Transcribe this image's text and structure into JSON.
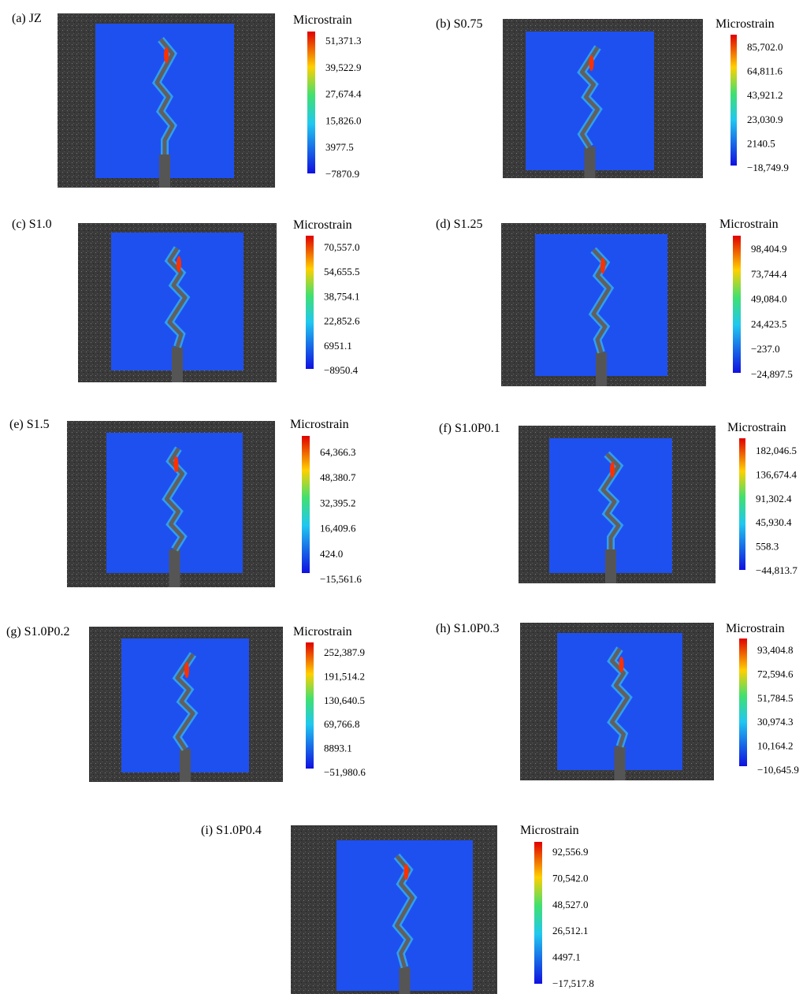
{
  "panels": [
    {
      "label": "(a) JZ",
      "colorbar": {
        "title": "Microstrain",
        "ticks": [
          "51,371.3",
          "39,522.9",
          "27,674.4",
          "15,826.0",
          "3977.5",
          "−7870.9"
        ]
      }
    },
    {
      "label": "(b) S0.75",
      "colorbar": {
        "title": "Microstrain",
        "ticks": [
          "85,702.0",
          "64,811.6",
          "43,921.2",
          "23,030.9",
          "2140.5",
          "−18,749.9"
        ]
      }
    },
    {
      "label": "(c) S1.0",
      "colorbar": {
        "title": "Microstrain",
        "ticks": [
          "70,557.0",
          "54,655.5",
          "38,754.1",
          "22,852.6",
          "6951.1",
          "−8950.4"
        ]
      }
    },
    {
      "label": "(d) S1.25",
      "colorbar": {
        "title": "Microstrain",
        "ticks": [
          "98,404.9",
          "73,744.4",
          "49,084.0",
          "24,423.5",
          "−237.0",
          "−24,897.5"
        ]
      }
    },
    {
      "label": "(e) S1.5",
      "colorbar": {
        "title": "Microstrain",
        "ticks": [
          "64,366.3",
          "48,380.7",
          "32,395.2",
          "16,409.6",
          "424.0",
          "−15,561.6"
        ]
      }
    },
    {
      "label": "(f) S1.0P0.1",
      "colorbar": {
        "title": "Microstrain",
        "ticks": [
          "182,046.5",
          "136,674.4",
          "91,302.4",
          "45,930.4",
          "558.3",
          "−44,813.7"
        ]
      }
    },
    {
      "label": "(g) S1.0P0.2",
      "colorbar": {
        "title": "Microstrain",
        "ticks": [
          "252,387.9",
          "191,514.2",
          "130,640.5",
          "69,766.8",
          "8893.1",
          "−51,980.6"
        ]
      }
    },
    {
      "label": "(h) S1.0P0.3",
      "colorbar": {
        "title": "Microstrain",
        "ticks": [
          "93,404.8",
          "72,594.6",
          "51,784.5",
          "30,974.3",
          "10,164.2",
          "−10,645.9"
        ]
      }
    },
    {
      "label": "(i) S1.0P0.4",
      "colorbar": {
        "title": "Microstrain",
        "ticks": [
          "92,556.9",
          "70,542.0",
          "48,527.0",
          "26,512.1",
          "4497.1",
          "−17,517.8"
        ]
      }
    }
  ]
}
